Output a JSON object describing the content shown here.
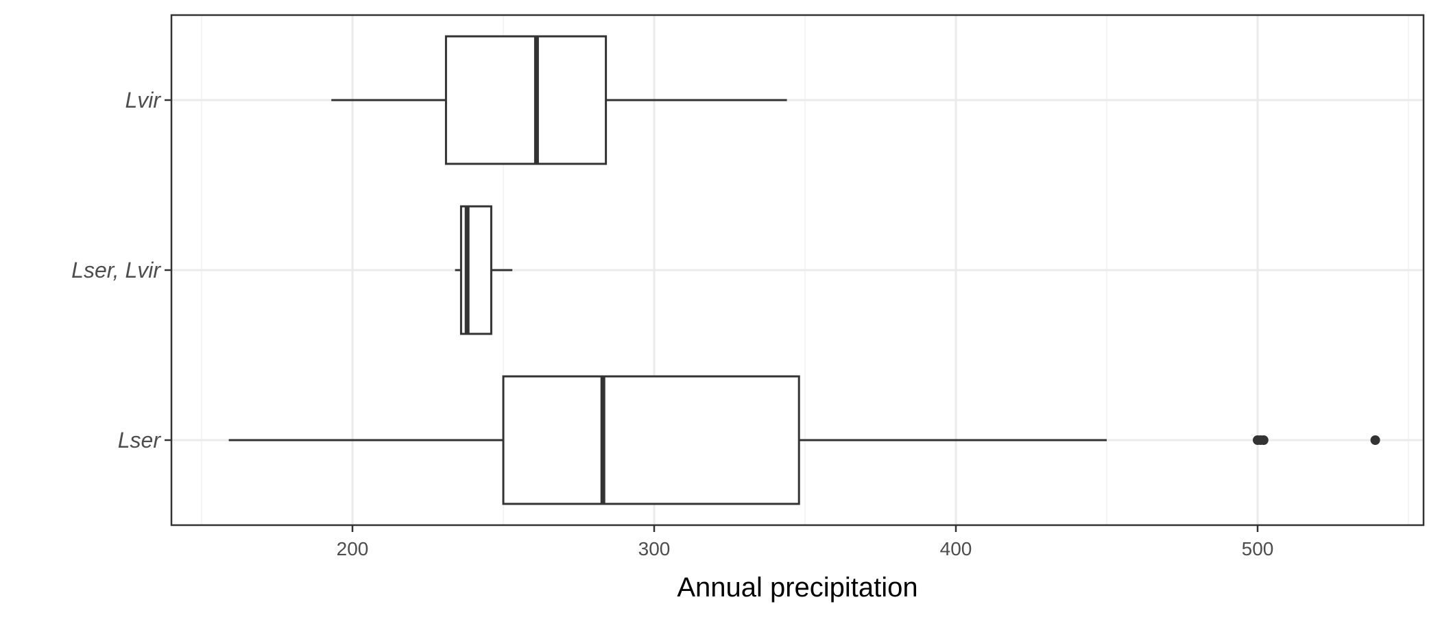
{
  "chart_data": {
    "type": "boxplot",
    "orientation": "horizontal",
    "title": "",
    "xlabel": "Annual precipitation",
    "ylabel": "",
    "xlim": [
      140,
      555
    ],
    "x_ticks": [
      200,
      300,
      400,
      500
    ],
    "grid": true,
    "categories": [
      "Lvir",
      "Lser, Lvir",
      "Lser"
    ],
    "boxes": [
      {
        "category": "Lvir",
        "whisker_low": 193,
        "q1": 231,
        "median": 261,
        "q3": 284,
        "whisker_high": 344,
        "outliers": []
      },
      {
        "category": "Lser, Lvir",
        "whisker_low": 234,
        "q1": 236,
        "median": 238,
        "q3": 246,
        "whisker_high": 253,
        "outliers": []
      },
      {
        "category": "Lser",
        "whisker_low": 159,
        "q1": 250,
        "median": 283,
        "q3": 348,
        "whisker_high": 450,
        "outliers": [
          500,
          501,
          502,
          539
        ]
      }
    ],
    "colors": {
      "box_stroke": "#333333",
      "box_fill": "#ffffff",
      "grid_major": "#ebebeb",
      "grid_minor": "#f5f5f5",
      "panel_border": "#333333"
    }
  }
}
